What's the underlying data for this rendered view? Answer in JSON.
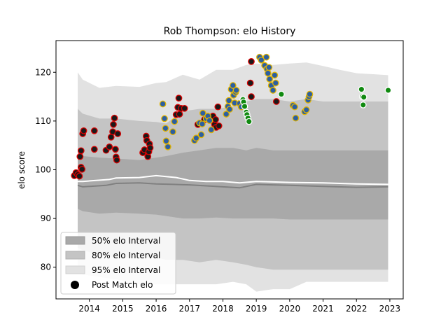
{
  "chart_data": {
    "type": "scatter",
    "title": "Rob Thompson: elo History",
    "xlabel": "",
    "ylabel": "elo score",
    "xlim": [
      2013.0,
      2023.4
    ],
    "ylim": [
      73.5,
      126.5
    ],
    "x_ticks": [
      2014,
      2015,
      2016,
      2017,
      2018,
      2019,
      2020,
      2021,
      2022,
      2023
    ],
    "y_ticks": [
      80,
      90,
      100,
      110,
      120
    ],
    "grid": false,
    "legend_position": "lower-left",
    "legend": [
      {
        "label": "50% elo Interval",
        "kind": "patch",
        "color": "#a9a9a9"
      },
      {
        "label": "80% elo Interval",
        "kind": "patch",
        "color": "#c4c4c4"
      },
      {
        "label": "95% elo Interval",
        "kind": "patch",
        "color": "#e2e2e2"
      },
      {
        "label": "Post Match elo",
        "kind": "marker",
        "color": "#000000"
      }
    ],
    "bands": {
      "x": [
        2013.65,
        2013.8,
        2014.3,
        2014.8,
        2015.5,
        2016.0,
        2016.3,
        2016.8,
        2017.3,
        2017.8,
        2018.3,
        2018.7,
        2019.0,
        2019.5,
        2020.0,
        2020.5,
        2021.0,
        2021.5,
        2022.0,
        2022.5,
        2022.95
      ],
      "p95_upper": [
        120.0,
        118.5,
        116.8,
        117.2,
        117.0,
        117.8,
        118.0,
        119.5,
        118.5,
        120.5,
        120.5,
        121.5,
        121.8,
        121.5,
        121.8,
        122.0,
        121.3,
        120.5,
        119.8,
        119.6,
        119.4
      ],
      "p80_upper": [
        112.5,
        111.5,
        110.5,
        110.5,
        110.0,
        109.8,
        109.5,
        112.0,
        112.5,
        112.5,
        113.0,
        114.0,
        114.5,
        114.5,
        114.0,
        114.5,
        114.0,
        114.0,
        114.0,
        114.0,
        114.0
      ],
      "p50_upper": [
        103.0,
        102.8,
        102.5,
        102.3,
        102.0,
        102.5,
        102.8,
        103.5,
        104.0,
        104.5,
        104.5,
        104.0,
        104.5,
        104.0,
        104.0,
        104.0,
        104.0,
        104.0,
        104.0,
        104.0,
        104.0
      ],
      "p50_lower": [
        92.0,
        91.5,
        91.0,
        91.2,
        91.0,
        90.8,
        90.5,
        90.0,
        90.0,
        90.2,
        90.0,
        90.0,
        90.0,
        90.0,
        89.8,
        89.8,
        89.8,
        89.8,
        89.8,
        89.8,
        89.8
      ],
      "p80_lower": [
        84.0,
        83.5,
        82.5,
        82.0,
        82.0,
        82.0,
        81.5,
        81.5,
        81.0,
        81.5,
        81.0,
        80.5,
        80.0,
        79.5,
        79.5,
        79.5,
        79.5,
        79.5,
        79.5,
        79.5,
        79.5
      ],
      "p95_lower": [
        79.0,
        78.5,
        78.0,
        77.5,
        76.5,
        76.5,
        76.5,
        76.5,
        76.5,
        76.5,
        77.0,
        76.5,
        75.0,
        75.5,
        75.5,
        77.0,
        77.0,
        77.0,
        77.0,
        77.0,
        77.0
      ]
    },
    "lines": [
      {
        "color": "#ffffff",
        "width": 2,
        "x": [
          2013.65,
          2013.8,
          2014.2,
          2014.6,
          2014.8,
          2015.5,
          2016.0,
          2016.3,
          2016.6,
          2017.0,
          2017.5,
          2018.0,
          2018.5,
          2019.0,
          2019.5,
          2020.0,
          2021.0,
          2022.0,
          2022.95
        ],
        "y": [
          97.6,
          97.6,
          97.8,
          98.0,
          98.3,
          98.4,
          98.8,
          98.6,
          98.4,
          97.8,
          97.6,
          97.6,
          97.3,
          97.6,
          97.5,
          97.4,
          97.3,
          97.1,
          97.0
        ]
      },
      {
        "color": "#808080",
        "width": 2,
        "x": [
          2013.65,
          2013.8,
          2014.5,
          2014.8,
          2015.5,
          2016.0,
          2016.5,
          2017.0,
          2017.5,
          2018.0,
          2018.5,
          2019.0,
          2019.5,
          2020.0,
          2021.0,
          2022.0,
          2022.95
        ],
        "y": [
          96.8,
          96.5,
          96.8,
          97.2,
          97.3,
          97.1,
          97.0,
          96.9,
          96.7,
          96.5,
          96.3,
          97.0,
          96.9,
          96.8,
          96.6,
          96.4,
          96.5
        ]
      }
    ],
    "series": [
      {
        "marker_fill": "#1a1a1a",
        "marker_edge": "#dd0000",
        "points": [
          {
            "x": 2013.55,
            "y": 98.8
          },
          {
            "x": 2013.6,
            "y": 99.4
          },
          {
            "x": 2013.65,
            "y": 99.0
          },
          {
            "x": 2013.7,
            "y": 98.7
          },
          {
            "x": 2013.72,
            "y": 102.7
          },
          {
            "x": 2013.75,
            "y": 103.9
          },
          {
            "x": 2013.75,
            "y": 100.5
          },
          {
            "x": 2013.78,
            "y": 100.1
          },
          {
            "x": 2013.8,
            "y": 107.4
          },
          {
            "x": 2013.83,
            "y": 108.0
          },
          {
            "x": 2014.15,
            "y": 108.0
          },
          {
            "x": 2014.15,
            "y": 104.2
          },
          {
            "x": 2014.5,
            "y": 104.0
          },
          {
            "x": 2014.6,
            "y": 104.7
          },
          {
            "x": 2014.65,
            "y": 106.7
          },
          {
            "x": 2014.7,
            "y": 107.8
          },
          {
            "x": 2014.72,
            "y": 109.3
          },
          {
            "x": 2014.75,
            "y": 110.6
          },
          {
            "x": 2014.78,
            "y": 104.2
          },
          {
            "x": 2014.8,
            "y": 102.6
          },
          {
            "x": 2014.82,
            "y": 102.0
          },
          {
            "x": 2014.85,
            "y": 107.4
          },
          {
            "x": 2015.6,
            "y": 103.5
          },
          {
            "x": 2015.65,
            "y": 104.1
          },
          {
            "x": 2015.7,
            "y": 106.9
          },
          {
            "x": 2015.72,
            "y": 106.0
          },
          {
            "x": 2015.75,
            "y": 102.7
          },
          {
            "x": 2015.78,
            "y": 103.7
          },
          {
            "x": 2015.8,
            "y": 105.3
          },
          {
            "x": 2015.82,
            "y": 104.5
          },
          {
            "x": 2016.6,
            "y": 111.3
          },
          {
            "x": 2016.65,
            "y": 112.8
          },
          {
            "x": 2016.68,
            "y": 114.7
          },
          {
            "x": 2016.7,
            "y": 111.4
          },
          {
            "x": 2016.75,
            "y": 112.6
          },
          {
            "x": 2016.85,
            "y": 112.6
          },
          {
            "x": 2017.25,
            "y": 109.3
          },
          {
            "x": 2017.45,
            "y": 110.3
          },
          {
            "x": 2017.7,
            "y": 111.0
          },
          {
            "x": 2017.75,
            "y": 109.3
          },
          {
            "x": 2017.78,
            "y": 110.3
          },
          {
            "x": 2017.8,
            "y": 108.7
          },
          {
            "x": 2017.85,
            "y": 112.9
          },
          {
            "x": 2017.88,
            "y": 109.0
          },
          {
            "x": 2018.85,
            "y": 122.2
          },
          {
            "x": 2018.82,
            "y": 117.8
          },
          {
            "x": 2018.85,
            "y": 115.0
          },
          {
            "x": 2019.6,
            "y": 114.0
          }
        ]
      },
      {
        "marker_fill": "#2c5fa0",
        "marker_edge": "#e3b400",
        "points": [
          {
            "x": 2016.2,
            "y": 113.5
          },
          {
            "x": 2016.25,
            "y": 110.5
          },
          {
            "x": 2016.28,
            "y": 108.5
          },
          {
            "x": 2016.3,
            "y": 105.9
          },
          {
            "x": 2016.35,
            "y": 104.7
          },
          {
            "x": 2016.5,
            "y": 107.8
          },
          {
            "x": 2016.55,
            "y": 109.9
          },
          {
            "x": 2017.15,
            "y": 106.0
          },
          {
            "x": 2017.2,
            "y": 106.5
          },
          {
            "x": 2017.3,
            "y": 109.6
          },
          {
            "x": 2017.35,
            "y": 107.2
          },
          {
            "x": 2017.38,
            "y": 109.4
          },
          {
            "x": 2017.4,
            "y": 111.6
          },
          {
            "x": 2017.5,
            "y": 110.5
          },
          {
            "x": 2017.55,
            "y": 111.0
          },
          {
            "x": 2017.6,
            "y": 110.1
          },
          {
            "x": 2017.65,
            "y": 108.2
          },
          {
            "x": 2018.1,
            "y": 111.4
          },
          {
            "x": 2018.15,
            "y": 113.0
          },
          {
            "x": 2018.18,
            "y": 114.2
          },
          {
            "x": 2018.2,
            "y": 112.4
          },
          {
            "x": 2018.25,
            "y": 116.5
          },
          {
            "x": 2018.3,
            "y": 117.3
          },
          {
            "x": 2018.32,
            "y": 115.3
          },
          {
            "x": 2018.35,
            "y": 113.7
          },
          {
            "x": 2018.38,
            "y": 115.9
          },
          {
            "x": 2018.4,
            "y": 116.3
          },
          {
            "x": 2018.5,
            "y": 113.6
          },
          {
            "x": 2018.55,
            "y": 112.9
          },
          {
            "x": 2019.1,
            "y": 123.1
          },
          {
            "x": 2019.15,
            "y": 122.5
          },
          {
            "x": 2019.25,
            "y": 121.4
          },
          {
            "x": 2019.3,
            "y": 123.1
          },
          {
            "x": 2019.32,
            "y": 120.7
          },
          {
            "x": 2019.35,
            "y": 119.8
          },
          {
            "x": 2019.38,
            "y": 121.0
          },
          {
            "x": 2019.4,
            "y": 118.6
          },
          {
            "x": 2019.45,
            "y": 117.3
          },
          {
            "x": 2019.5,
            "y": 116.3
          },
          {
            "x": 2019.55,
            "y": 119.4
          },
          {
            "x": 2019.58,
            "y": 117.8
          },
          {
            "x": 2020.1,
            "y": 113.2
          },
          {
            "x": 2020.15,
            "y": 112.9
          },
          {
            "x": 2020.18,
            "y": 110.6
          },
          {
            "x": 2020.45,
            "y": 111.9
          },
          {
            "x": 2020.5,
            "y": 112.3
          },
          {
            "x": 2020.55,
            "y": 114.3
          },
          {
            "x": 2020.58,
            "y": 115.0
          },
          {
            "x": 2020.6,
            "y": 115.5
          }
        ]
      },
      {
        "marker_fill": "#118a11",
        "marker_edge": "#ffffff",
        "points": [
          {
            "x": 2018.6,
            "y": 114.4
          },
          {
            "x": 2018.62,
            "y": 113.9
          },
          {
            "x": 2018.65,
            "y": 113.0
          },
          {
            "x": 2018.7,
            "y": 111.8
          },
          {
            "x": 2018.72,
            "y": 111.3
          },
          {
            "x": 2018.75,
            "y": 110.6
          },
          {
            "x": 2018.78,
            "y": 109.9
          },
          {
            "x": 2019.75,
            "y": 115.5
          },
          {
            "x": 2022.15,
            "y": 116.5
          },
          {
            "x": 2022.18,
            "y": 115.0
          },
          {
            "x": 2022.2,
            "y": 113.3
          },
          {
            "x": 2022.22,
            "y": 114.9
          },
          {
            "x": 2022.95,
            "y": 116.3
          }
        ]
      }
    ]
  }
}
